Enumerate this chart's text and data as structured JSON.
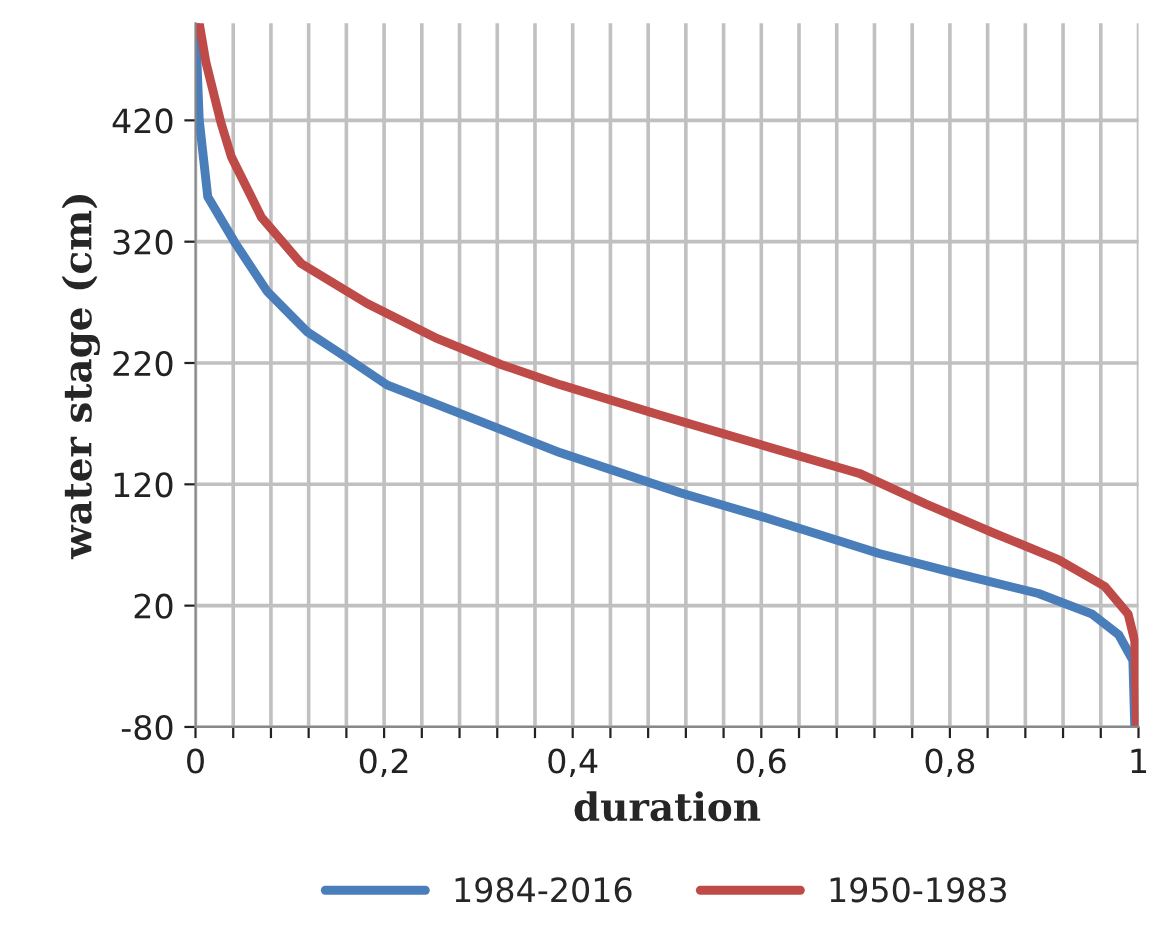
{
  "chart_data": {
    "type": "line",
    "xlabel": "duration",
    "ylabel": "water stage (cm)",
    "xlim": [
      0,
      1
    ],
    "ylim": [
      -80,
      500
    ],
    "xticks": [
      0,
      {
        "value": 0.04,
        "label": null
      },
      {
        "value": 0.08,
        "label": null
      },
      {
        "value": 0.12,
        "label": null
      },
      {
        "value": 0.16,
        "label": null
      },
      {
        "value": 0.2,
        "label": "0,2"
      },
      {
        "value": 0.24,
        "label": null
      },
      {
        "value": 0.28,
        "label": null
      },
      {
        "value": 0.32,
        "label": null
      },
      {
        "value": 0.36,
        "label": null
      },
      {
        "value": 0.4,
        "label": "0,4"
      },
      {
        "value": 0.44,
        "label": null
      },
      {
        "value": 0.48,
        "label": null
      },
      {
        "value": 0.52,
        "label": null
      },
      {
        "value": 0.56,
        "label": null
      },
      {
        "value": 0.6,
        "label": "0,6"
      },
      {
        "value": 0.64,
        "label": null
      },
      {
        "value": 0.68,
        "label": null
      },
      {
        "value": 0.72,
        "label": null
      },
      {
        "value": 0.76,
        "label": null
      },
      {
        "value": 0.8,
        "label": "0,8"
      },
      {
        "value": 0.84,
        "label": null
      },
      {
        "value": 0.88,
        "label": null
      },
      {
        "value": 0.92,
        "label": null
      },
      {
        "value": 0.96,
        "label": null
      },
      1
    ],
    "yticks": [
      -80,
      20,
      120,
      220,
      320,
      420
    ],
    "grid": true,
    "legend": "bottom",
    "line_style": "solid",
    "series": [
      {
        "name": "1984-2016",
        "color": "#4a7ebb",
        "x": [
          0,
          0.004,
          0.013,
          0.042,
          0.076,
          0.118,
          0.161,
          0.203,
          0.387,
          0.514,
          0.598,
          0.725,
          0.81,
          0.894,
          0.951,
          0.979,
          0.994,
          0.996
        ],
        "values": [
          500,
          420,
          357,
          319,
          279,
          246,
          224,
          202,
          146,
          113,
          94,
          63,
          46,
          30,
          13,
          -4,
          -25,
          -80
        ]
      },
      {
        "name": "1950-1983",
        "color": "#be4b48",
        "x": [
          0.004,
          0.011,
          0.027,
          0.038,
          0.07,
          0.112,
          0.182,
          0.254,
          0.323,
          0.387,
          0.493,
          0.598,
          0.704,
          0.774,
          0.846,
          0.915,
          0.964,
          0.989,
          0.996,
          0.998
        ],
        "values": [
          500,
          468,
          418,
          390,
          340,
          302,
          269,
          241,
          219,
          202,
          177,
          153,
          129,
          104,
          80,
          58,
          36,
          13,
          -9,
          -80
        ]
      }
    ]
  }
}
